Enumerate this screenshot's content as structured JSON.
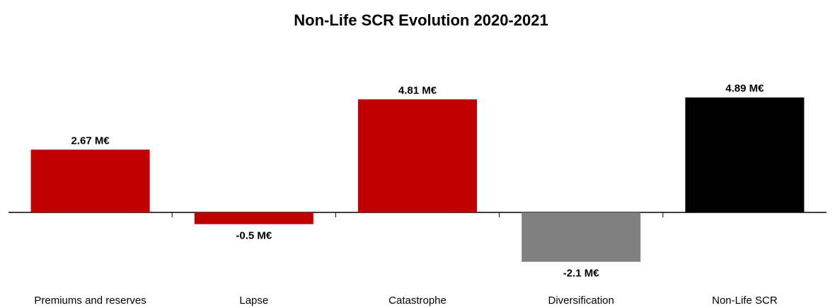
{
  "chart_data": {
    "type": "bar",
    "title": "Non-Life SCR Evolution 2020-2021",
    "categories": [
      "Premiums and reserves",
      "Lapse",
      "Catastrophe",
      "Diversification",
      "Non-Life SCR"
    ],
    "values": [
      2.67,
      -0.5,
      4.81,
      -2.1,
      4.89
    ],
    "value_labels": [
      "2.67 M€",
      "-0.5 M€",
      "4.81 M€",
      "-2.1 M€",
      "4.89 M€"
    ],
    "colors": [
      "#c00000",
      "#c00000",
      "#c00000",
      "#808080",
      "#000000"
    ]
  }
}
